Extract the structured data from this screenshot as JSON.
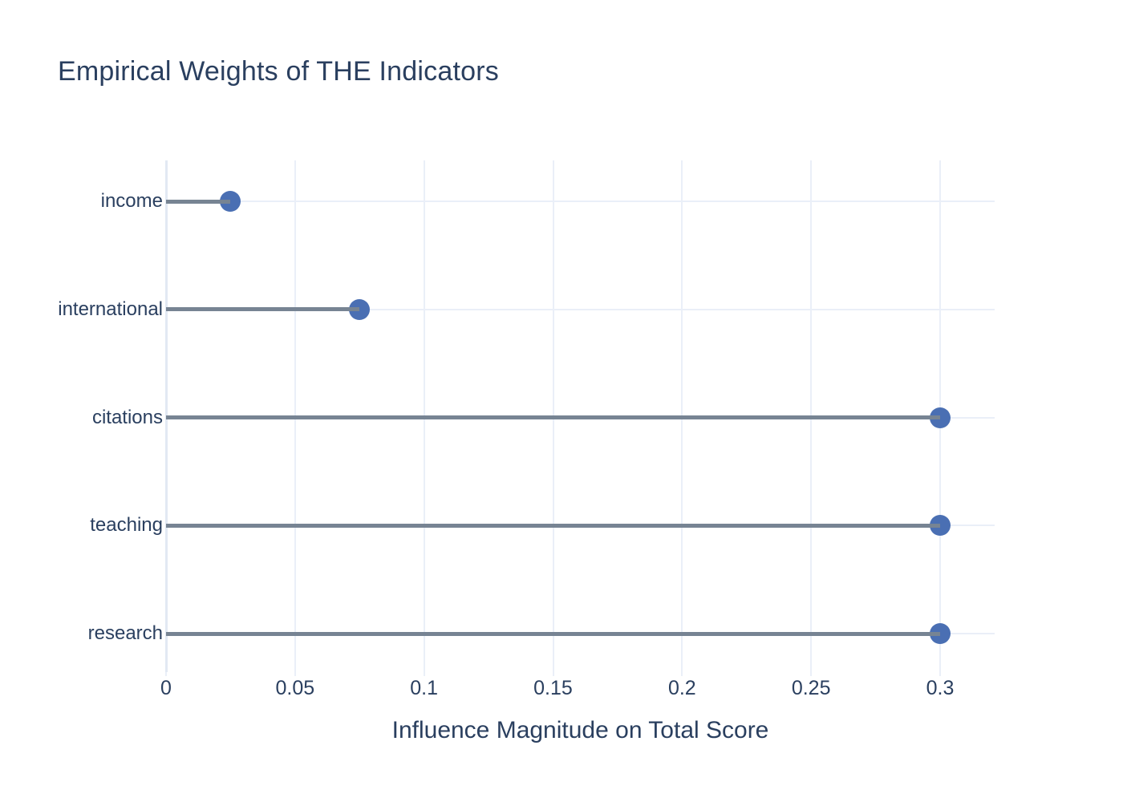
{
  "chart_data": {
    "type": "scatter",
    "variant": "horizontal-lollipop",
    "orientation": "horizontal",
    "title": "Empirical Weights of THE Indicators",
    "xlabel": "Influence Magnitude on Total Score",
    "ylabel": "",
    "categories": [
      "income",
      "international",
      "citations",
      "teaching",
      "research"
    ],
    "values": [
      0.025,
      0.075,
      0.3,
      0.3,
      0.3
    ],
    "xticks": [
      0,
      0.05,
      0.1,
      0.15,
      0.2,
      0.25,
      0.3
    ],
    "xtick_labels": [
      "0",
      "0.05",
      "0.1",
      "0.15",
      "0.2",
      "0.25",
      "0.3"
    ],
    "xlim": [
      0,
      0.321
    ],
    "grid": true,
    "legend": false,
    "colors": {
      "marker": "#4a6fb3",
      "stem": "#778493",
      "text": "#2a3f5f",
      "grid": "#eaeff8",
      "zeroline": "#e2e9f3",
      "background": "#ffffff"
    }
  }
}
